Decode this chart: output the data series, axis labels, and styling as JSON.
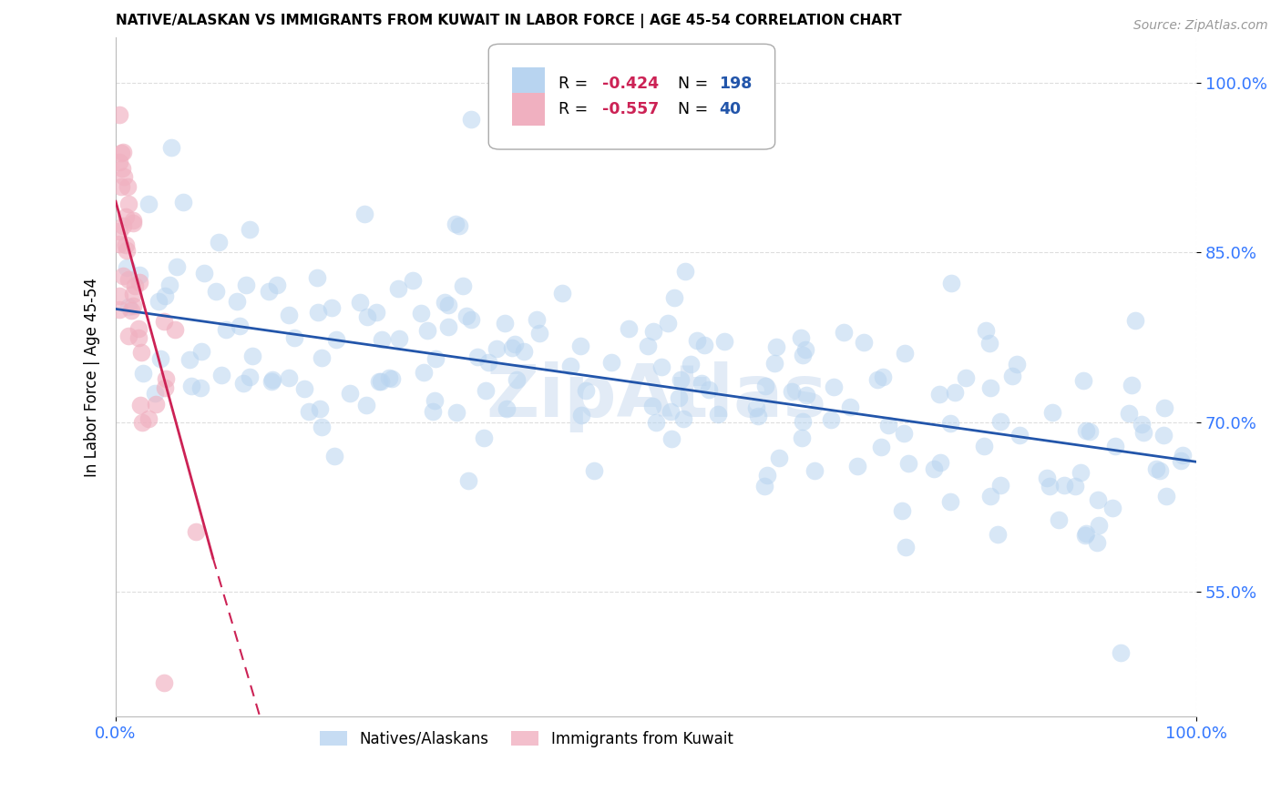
{
  "title": "NATIVE/ALASKAN VS IMMIGRANTS FROM KUWAIT IN LABOR FORCE | AGE 45-54 CORRELATION CHART",
  "source": "Source: ZipAtlas.com",
  "ylabel": "In Labor Force | Age 45-54",
  "yticks": [
    0.55,
    0.7,
    0.85,
    1.0
  ],
  "ytick_labels": [
    "55.0%",
    "70.0%",
    "85.0%",
    "100.0%"
  ],
  "xmin": 0.0,
  "xmax": 1.0,
  "ymin": 0.44,
  "ymax": 1.04,
  "blue_color": "#b8d4f0",
  "pink_color": "#f0b0c0",
  "blue_line_color": "#2255aa",
  "pink_line_color": "#cc2255",
  "grid_color": "#dddddd",
  "axis_tick_color": "#3377ff",
  "watermark": "ZipAtlas",
  "blue_R": "-0.424",
  "blue_N": "198",
  "pink_R": "-0.557",
  "pink_N": "40"
}
